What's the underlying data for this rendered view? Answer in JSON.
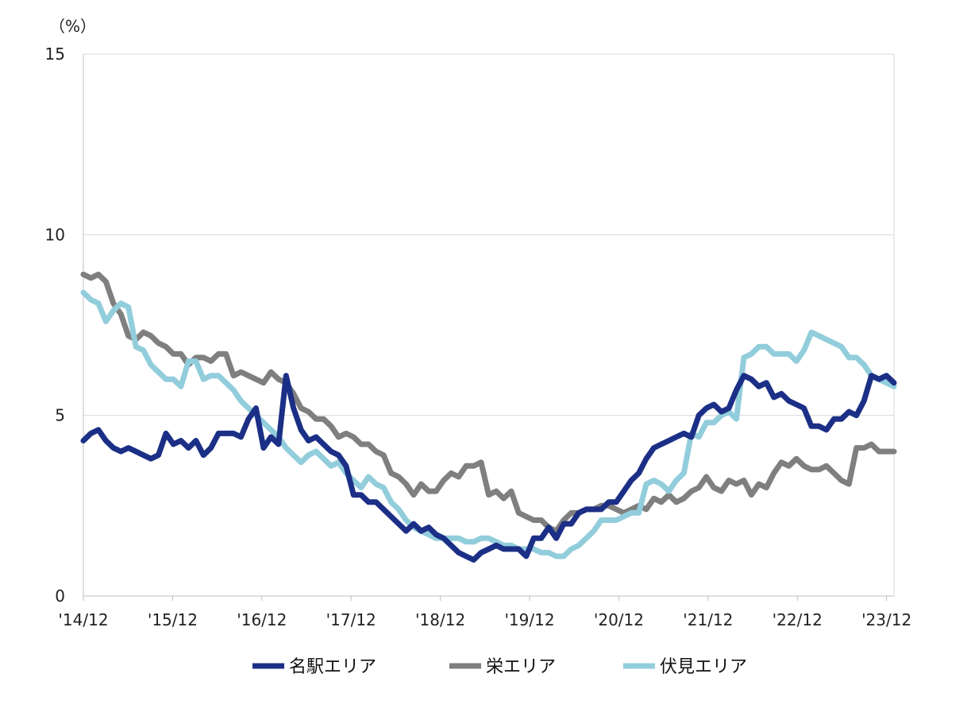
{
  "chart_data": {
    "type": "line",
    "unit_label": "（%）",
    "ylim": [
      0,
      15
    ],
    "y_ticks": [
      "0",
      "5",
      "10",
      "15"
    ],
    "x_tick_labels": [
      "'14/12",
      "'15/12",
      "'16/12",
      "'17/12",
      "'18/12",
      "'19/12",
      "'20/12",
      "'21/12",
      "'22/12",
      "'23/12"
    ],
    "x_start": "2014-12",
    "x_end": "2024-01",
    "grid": "horizontal",
    "legend_position": "bottom",
    "series": [
      {
        "name": "名駅エリア",
        "color": "#1c2f86",
        "values": [
          4.3,
          4.5,
          4.6,
          4.3,
          4.1,
          4.0,
          4.1,
          4.0,
          3.9,
          3.8,
          3.9,
          4.5,
          4.2,
          4.3,
          4.1,
          4.3,
          3.9,
          4.1,
          4.5,
          4.5,
          4.5,
          4.4,
          4.9,
          5.2,
          4.1,
          4.4,
          4.2,
          6.1,
          5.2,
          4.6,
          4.3,
          4.4,
          4.2,
          4.0,
          3.9,
          3.6,
          2.8,
          2.8,
          2.6,
          2.6,
          2.4,
          2.2,
          2.0,
          1.8,
          2.0,
          1.8,
          1.9,
          1.7,
          1.6,
          1.4,
          1.2,
          1.1,
          1.0,
          1.2,
          1.3,
          1.4,
          1.3,
          1.3,
          1.3,
          1.1,
          1.6,
          1.6,
          1.9,
          1.6,
          2.0,
          2.0,
          2.3,
          2.4,
          2.4,
          2.4,
          2.6,
          2.6,
          2.9,
          3.2,
          3.4,
          3.8,
          4.1,
          4.2,
          4.3,
          4.4,
          4.5,
          4.4,
          5.0,
          5.2,
          5.3,
          5.1,
          5.2,
          5.7,
          6.1,
          6.0,
          5.8,
          5.9,
          5.5,
          5.6,
          5.4,
          5.3,
          5.2,
          4.7,
          4.7,
          4.6,
          4.9,
          4.9,
          5.1,
          5.0,
          5.4,
          6.1,
          6.0,
          6.1,
          5.9
        ]
      },
      {
        "name": "栄エリア",
        "color": "#7f7f7f",
        "values": [
          8.9,
          8.8,
          8.9,
          8.7,
          8.1,
          7.8,
          7.2,
          7.1,
          7.3,
          7.2,
          7.0,
          6.9,
          6.7,
          6.7,
          6.4,
          6.6,
          6.6,
          6.5,
          6.7,
          6.7,
          6.1,
          6.2,
          6.1,
          6.0,
          5.9,
          6.2,
          6.0,
          5.9,
          5.6,
          5.2,
          5.1,
          4.9,
          4.9,
          4.7,
          4.4,
          4.5,
          4.4,
          4.2,
          4.2,
          4.0,
          3.9,
          3.4,
          3.3,
          3.1,
          2.8,
          3.1,
          2.9,
          2.9,
          3.2,
          3.4,
          3.3,
          3.6,
          3.6,
          3.7,
          2.8,
          2.9,
          2.7,
          2.9,
          2.3,
          2.2,
          2.1,
          2.1,
          1.9,
          1.8,
          2.1,
          2.3,
          2.3,
          2.4,
          2.4,
          2.5,
          2.5,
          2.4,
          2.3,
          2.4,
          2.5,
          2.4,
          2.7,
          2.6,
          2.8,
          2.6,
          2.7,
          2.9,
          3.0,
          3.3,
          3.0,
          2.9,
          3.2,
          3.1,
          3.2,
          2.8,
          3.1,
          3.0,
          3.4,
          3.7,
          3.6,
          3.8,
          3.6,
          3.5,
          3.5,
          3.6,
          3.4,
          3.2,
          3.1,
          4.1,
          4.1,
          4.2,
          4.0,
          4.0,
          4.0
        ]
      },
      {
        "name": "伏見エリア",
        "color": "#92cddc",
        "values": [
          8.4,
          8.2,
          8.1,
          7.6,
          7.9,
          8.1,
          8.0,
          6.9,
          6.8,
          6.4,
          6.2,
          6.0,
          6.0,
          5.8,
          6.5,
          6.5,
          6.0,
          6.1,
          6.1,
          5.9,
          5.7,
          5.4,
          5.2,
          5.0,
          4.8,
          4.6,
          4.4,
          4.1,
          3.9,
          3.7,
          3.9,
          4.0,
          3.8,
          3.6,
          3.7,
          3.4,
          3.2,
          3.0,
          3.3,
          3.1,
          3.0,
          2.6,
          2.4,
          2.1,
          1.9,
          1.8,
          1.7,
          1.6,
          1.6,
          1.6,
          1.6,
          1.5,
          1.5,
          1.6,
          1.6,
          1.5,
          1.4,
          1.4,
          1.3,
          1.3,
          1.3,
          1.2,
          1.2,
          1.1,
          1.1,
          1.3,
          1.4,
          1.6,
          1.8,
          2.1,
          2.1,
          2.1,
          2.2,
          2.3,
          2.3,
          3.1,
          3.2,
          3.1,
          2.9,
          3.2,
          3.4,
          4.5,
          4.4,
          4.8,
          4.8,
          5.0,
          5.1,
          4.9,
          6.6,
          6.7,
          6.9,
          6.9,
          6.7,
          6.7,
          6.7,
          6.5,
          6.8,
          7.3,
          7.2,
          7.1,
          7.0,
          6.9,
          6.6,
          6.6,
          6.4,
          6.1,
          6.0,
          5.9,
          5.8
        ]
      }
    ]
  }
}
